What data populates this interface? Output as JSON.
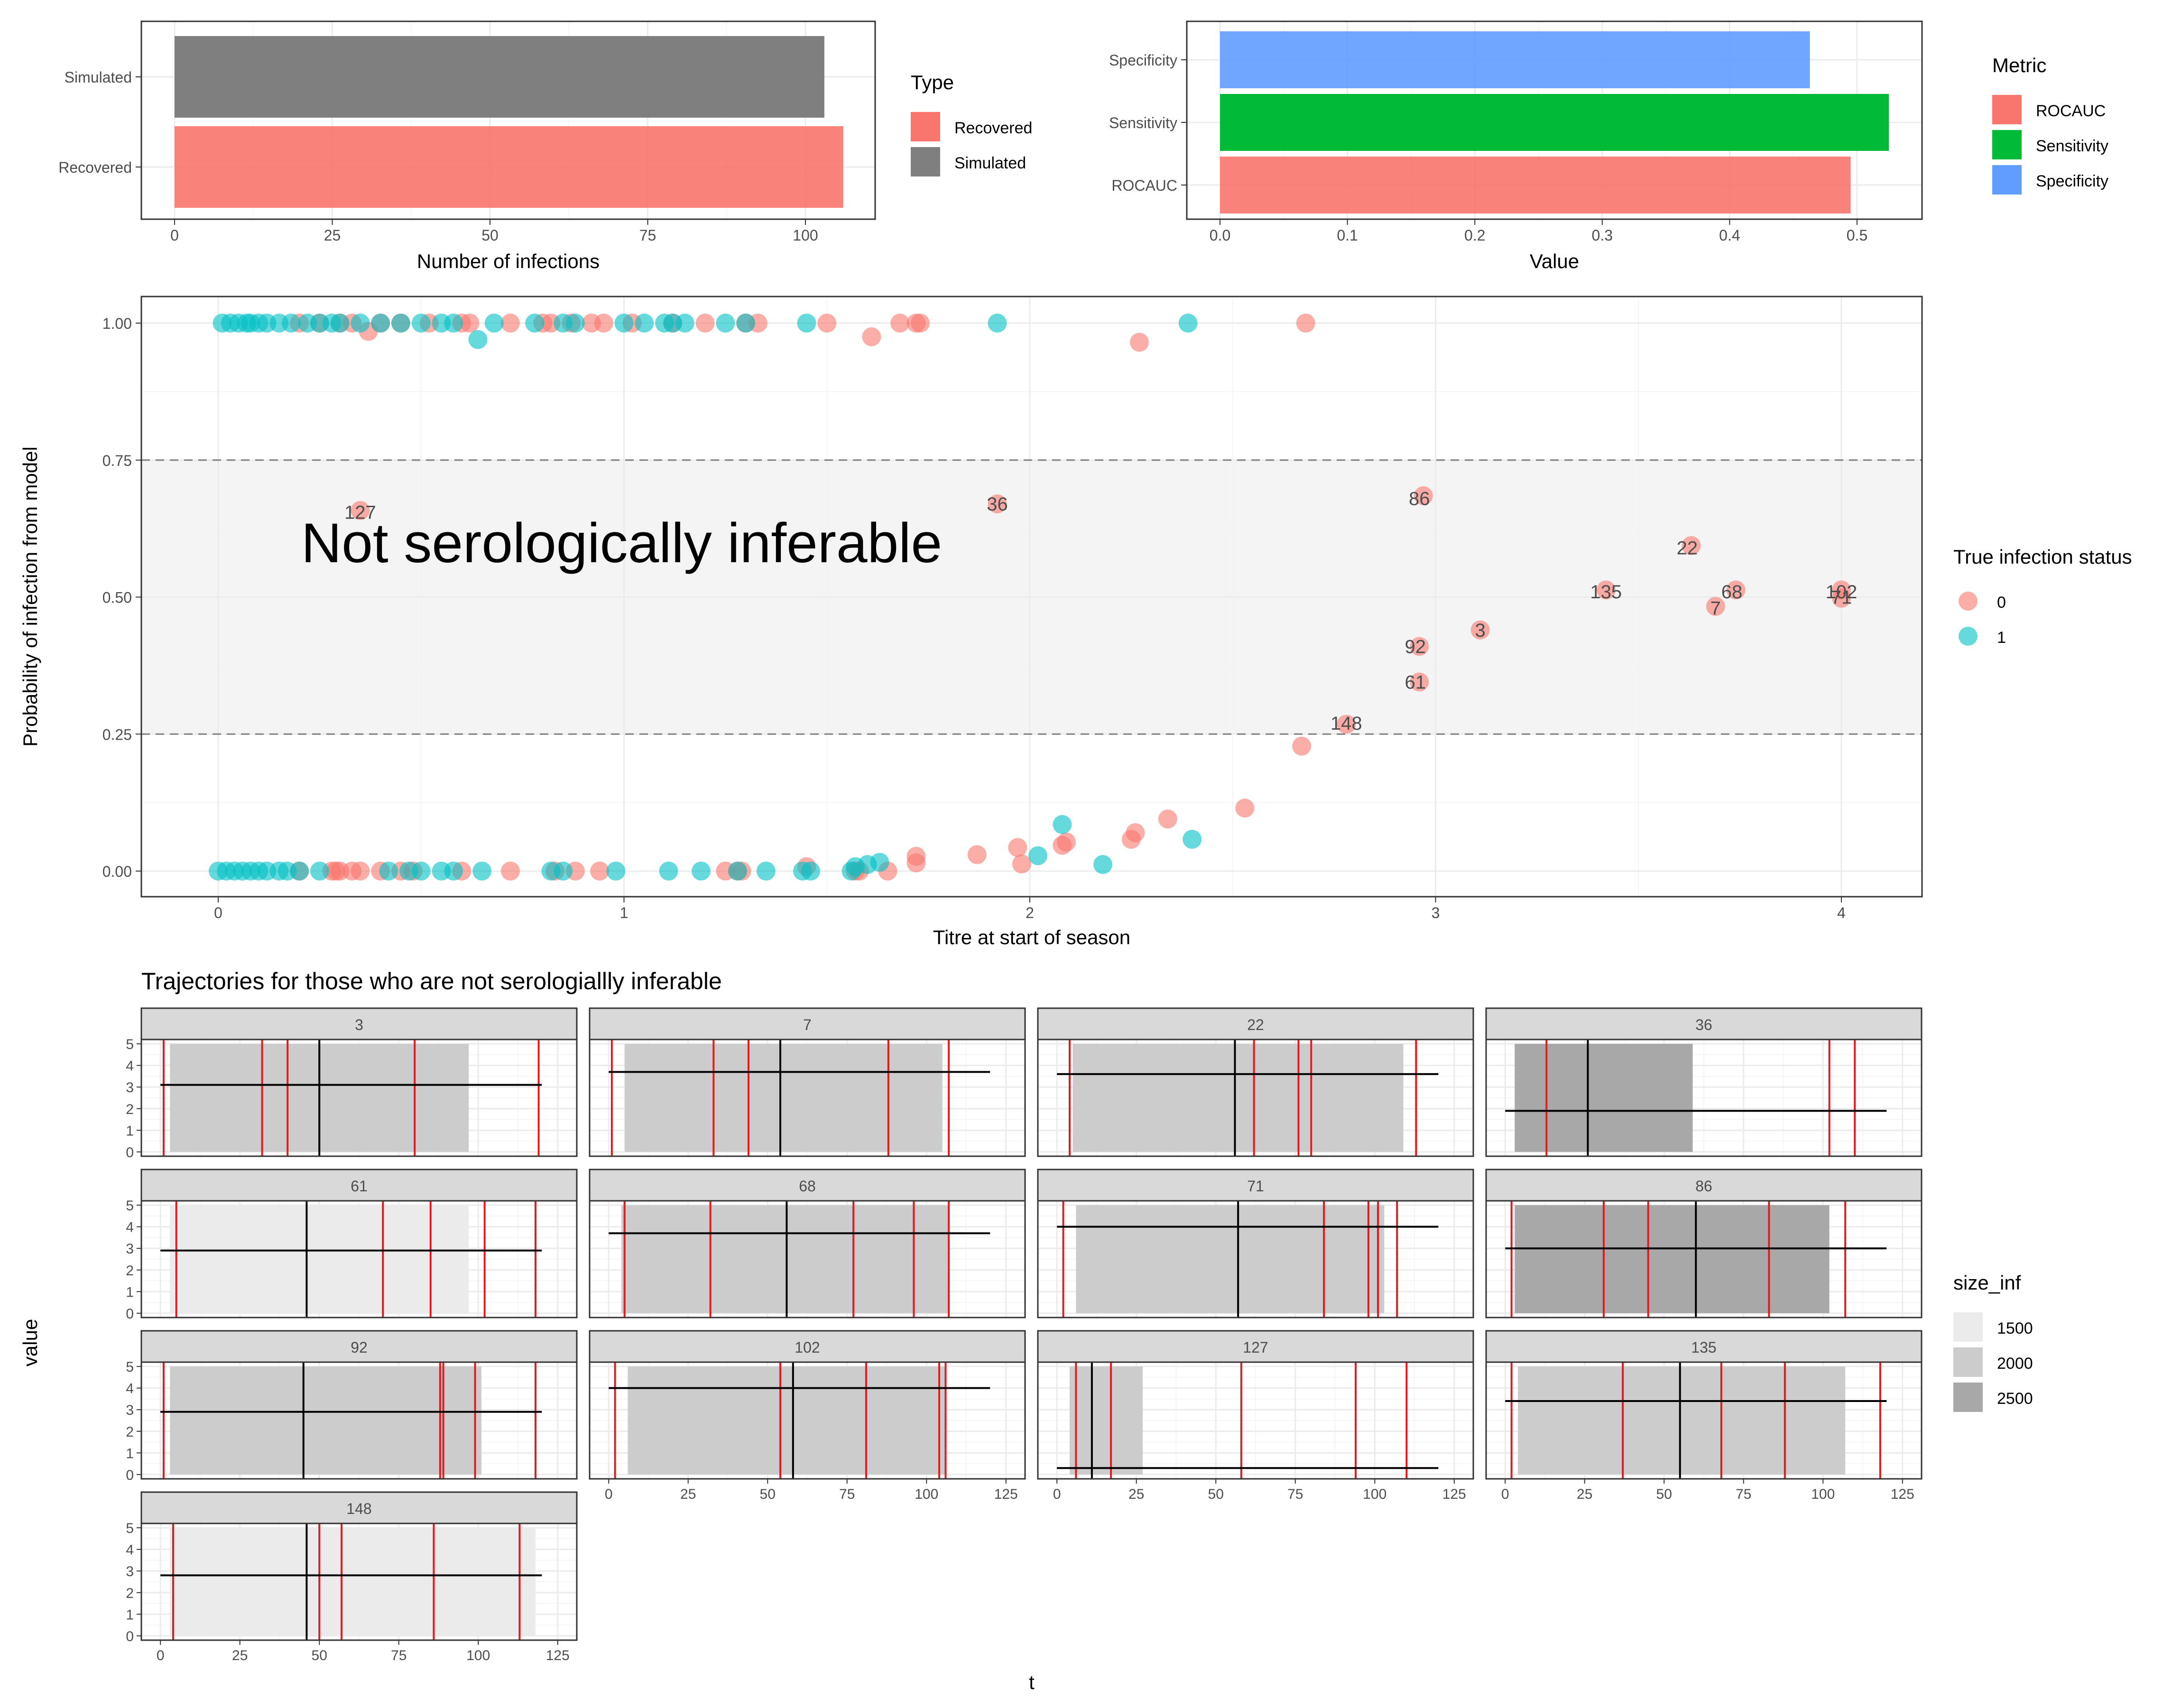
{
  "colors": {
    "recovered": "#F8766D",
    "simulated": "#7F7F7F",
    "rocauc": "#F8766D",
    "sensitivity": "#00BA38",
    "specificity": "#619CFF",
    "status0": "#F8766D",
    "status1": "#00BFC4",
    "vline": "#E41A1C",
    "size1500": "#EBEBEB",
    "size2000": "#CCCCCC",
    "size2500": "#A8A8A8"
  },
  "chart_data": [
    {
      "type": "bar",
      "orientation": "horizontal",
      "categories": [
        "Recovered",
        "Simulated"
      ],
      "values": [
        106,
        103
      ],
      "xlabel": "Number of infections",
      "ylabel": "",
      "xlim": [
        0,
        110
      ],
      "xticks": [
        "0",
        "25",
        "50",
        "75",
        "100"
      ],
      "legend": {
        "title": "Type",
        "entries": [
          "Recovered",
          "Simulated"
        ],
        "placement": "right"
      }
    },
    {
      "type": "bar",
      "orientation": "horizontal",
      "categories": [
        "ROCAUC",
        "Sensitivity",
        "Specificity"
      ],
      "values": [
        0.495,
        0.525,
        0.463
      ],
      "xlabel": "Value",
      "ylabel": "",
      "xlim": [
        0,
        0.55
      ],
      "xticks": [
        "0.0",
        "0.1",
        "0.2",
        "0.3",
        "0.4",
        "0.5"
      ],
      "legend": {
        "title": "Metric",
        "entries": [
          "ROCAUC",
          "Sensitivity",
          "Specificity"
        ],
        "placement": "right"
      }
    },
    {
      "type": "scatter",
      "xlabel": "Titre at start of season",
      "ylabel": "Probability of infection from model",
      "xlim": [
        -0.19,
        4.2
      ],
      "ylim": [
        -0.05,
        1.05
      ],
      "xticks": [
        "0",
        "1",
        "2",
        "3",
        "4"
      ],
      "yticks": [
        "0.00",
        "0.25",
        "0.50",
        "0.75",
        "1.00"
      ],
      "band": [
        0.25,
        0.75
      ],
      "annotation": "Not serologically inferable",
      "legend": {
        "title": "True infection status",
        "entries": [
          "0",
          "1"
        ],
        "placement": "right"
      },
      "labels": [
        {
          "text": "127",
          "x": 0.35,
          "y": 0.655
        },
        {
          "text": "36",
          "x": 1.92,
          "y": 0.67
        },
        {
          "text": "86",
          "x": 2.96,
          "y": 0.68
        },
        {
          "text": "22",
          "x": 3.62,
          "y": 0.59
        },
        {
          "text": "135",
          "x": 3.42,
          "y": 0.51
        },
        {
          "text": "68",
          "x": 3.73,
          "y": 0.51
        },
        {
          "text": "7",
          "x": 3.69,
          "y": 0.48
        },
        {
          "text": "102",
          "x": 4.0,
          "y": 0.51
        },
        {
          "text": "71",
          "x": 4.0,
          "y": 0.5
        },
        {
          "text": "3",
          "x": 3.11,
          "y": 0.44
        },
        {
          "text": "92",
          "x": 2.95,
          "y": 0.41
        },
        {
          "text": "61",
          "x": 2.95,
          "y": 0.345
        },
        {
          "text": "148",
          "x": 2.78,
          "y": 0.27
        }
      ],
      "series": [
        {
          "name": "0",
          "points": [
            [
              0.2,
              1.0
            ],
            [
              0.25,
              1.0
            ],
            [
              0.3,
              1.0
            ],
            [
              0.33,
              1.0
            ],
            [
              0.37,
              0.985
            ],
            [
              0.4,
              1.0
            ],
            [
              0.45,
              1.0
            ],
            [
              0.52,
              1.0
            ],
            [
              0.6,
              1.0
            ],
            [
              0.62,
              1.0
            ],
            [
              0.72,
              1.0
            ],
            [
              0.8,
              1.0
            ],
            [
              0.82,
              1.0
            ],
            [
              0.87,
              1.0
            ],
            [
              0.92,
              1.0
            ],
            [
              0.95,
              1.0
            ],
            [
              1.02,
              1.0
            ],
            [
              1.12,
              1.0
            ],
            [
              1.2,
              1.0
            ],
            [
              1.3,
              1.0
            ],
            [
              1.33,
              1.0
            ],
            [
              1.5,
              1.0
            ],
            [
              1.61,
              0.975
            ],
            [
              1.68,
              1.0
            ],
            [
              1.72,
              1.0
            ],
            [
              1.73,
              1.0
            ],
            [
              2.27,
              0.965
            ],
            [
              2.68,
              1.0
            ],
            [
              0.35,
              0.658
            ],
            [
              1.92,
              0.67
            ],
            [
              2.97,
              0.685
            ],
            [
              3.63,
              0.594
            ],
            [
              3.42,
              0.513
            ],
            [
              3.74,
              0.513
            ],
            [
              3.69,
              0.483
            ],
            [
              4.0,
              0.513
            ],
            [
              4.0,
              0.498
            ],
            [
              3.11,
              0.44
            ],
            [
              2.96,
              0.41
            ],
            [
              2.96,
              0.345
            ],
            [
              2.78,
              0.268
            ],
            [
              2.67,
              0.228
            ],
            [
              2.53,
              0.115
            ],
            [
              2.34,
              0.095
            ],
            [
              2.26,
              0.07
            ],
            [
              2.25,
              0.058
            ],
            [
              2.09,
              0.053
            ],
            [
              2.08,
              0.047
            ],
            [
              1.97,
              0.043
            ],
            [
              1.87,
              0.03
            ],
            [
              1.72,
              0.027
            ],
            [
              1.72,
              0.015
            ],
            [
              1.98,
              0.013
            ],
            [
              1.45,
              0.008
            ],
            [
              1.65,
              0.0
            ],
            [
              1.57,
              0.0
            ],
            [
              1.58,
              0.0
            ],
            [
              1.25,
              0.0
            ],
            [
              1.28,
              0.0
            ],
            [
              1.29,
              0.0
            ],
            [
              0.94,
              0.0
            ],
            [
              0.88,
              0.0
            ],
            [
              0.83,
              0.0
            ],
            [
              0.72,
              0.0
            ],
            [
              0.6,
              0.0
            ],
            [
              0.48,
              0.0
            ],
            [
              0.45,
              0.0
            ],
            [
              0.4,
              0.0
            ],
            [
              0.35,
              0.0
            ],
            [
              0.33,
              0.0
            ],
            [
              0.3,
              0.0
            ],
            [
              0.29,
              0.0
            ],
            [
              0.28,
              0.0
            ],
            [
              0.2,
              0.0
            ]
          ]
        },
        {
          "name": "1",
          "points": [
            [
              0.01,
              1.0
            ],
            [
              0.03,
              1.0
            ],
            [
              0.05,
              1.0
            ],
            [
              0.07,
              1.0
            ],
            [
              0.08,
              1.0
            ],
            [
              0.1,
              1.0
            ],
            [
              0.12,
              1.0
            ],
            [
              0.15,
              1.0
            ],
            [
              0.18,
              1.0
            ],
            [
              0.22,
              1.0
            ],
            [
              0.25,
              1.0
            ],
            [
              0.28,
              1.0
            ],
            [
              0.3,
              1.0
            ],
            [
              0.35,
              1.0
            ],
            [
              0.4,
              1.0
            ],
            [
              0.45,
              1.0
            ],
            [
              0.5,
              1.0
            ],
            [
              0.55,
              1.0
            ],
            [
              0.58,
              1.0
            ],
            [
              0.64,
              0.97
            ],
            [
              0.68,
              1.0
            ],
            [
              0.78,
              1.0
            ],
            [
              0.85,
              1.0
            ],
            [
              0.88,
              1.0
            ],
            [
              1.0,
              1.0
            ],
            [
              1.05,
              1.0
            ],
            [
              1.1,
              1.0
            ],
            [
              1.12,
              1.0
            ],
            [
              1.15,
              1.0
            ],
            [
              1.25,
              1.0
            ],
            [
              1.3,
              1.0
            ],
            [
              1.45,
              1.0
            ],
            [
              1.92,
              1.0
            ],
            [
              2.39,
              1.0
            ],
            [
              2.08,
              0.085
            ],
            [
              2.4,
              0.058
            ],
            [
              2.02,
              0.028
            ],
            [
              2.18,
              0.012
            ],
            [
              1.63,
              0.016
            ],
            [
              1.6,
              0.012
            ],
            [
              1.57,
              0.008
            ],
            [
              1.56,
              0.0
            ],
            [
              1.46,
              0.0
            ],
            [
              1.44,
              0.0
            ],
            [
              1.35,
              0.0
            ],
            [
              1.28,
              0.0
            ],
            [
              1.19,
              0.0
            ],
            [
              1.11,
              0.0
            ],
            [
              0.98,
              0.0
            ],
            [
              0.85,
              0.0
            ],
            [
              0.82,
              0.0
            ],
            [
              0.65,
              0.0
            ],
            [
              0.58,
              0.0
            ],
            [
              0.55,
              0.0
            ],
            [
              0.5,
              0.0
            ],
            [
              0.47,
              0.0
            ],
            [
              0.42,
              0.0
            ],
            [
              0.25,
              0.0
            ],
            [
              0.2,
              0.0
            ],
            [
              0.17,
              0.0
            ],
            [
              0.15,
              0.0
            ],
            [
              0.12,
              0.0
            ],
            [
              0.1,
              0.0
            ],
            [
              0.08,
              0.0
            ],
            [
              0.06,
              0.0
            ],
            [
              0.04,
              0.0
            ],
            [
              0.02,
              0.0
            ],
            [
              0.0,
              0.0
            ]
          ]
        }
      ]
    },
    {
      "type": "line",
      "subtype": "facet_wrap",
      "title": "Trajectories for those who are not serologiallly inferable",
      "xlabel": "t",
      "ylabel": "value",
      "xlim": [
        -6,
        131
      ],
      "ylim": [
        -0.2,
        5.2
      ],
      "xticks": [
        "0",
        "25",
        "50",
        "75",
        "100",
        "125"
      ],
      "yticks": [
        "0",
        "1",
        "2",
        "3",
        "4",
        "5"
      ],
      "legend": {
        "title": "size_inf",
        "entries": [
          "1500",
          "2000",
          "2500"
        ],
        "placement": "right"
      },
      "panels": [
        {
          "id": "3",
          "size_inf": 2000,
          "rect": [
            3,
            97
          ],
          "hline": 3.1,
          "black_vline": 50,
          "red_vlines": [
            1,
            32,
            40,
            80,
            119
          ]
        },
        {
          "id": "7",
          "size_inf": 2000,
          "rect": [
            5,
            105
          ],
          "hline": 3.7,
          "black_vline": 54,
          "red_vlines": [
            1,
            33,
            44,
            88,
            107
          ]
        },
        {
          "id": "22",
          "size_inf": 2000,
          "rect": [
            5,
            109
          ],
          "hline": 3.6,
          "black_vline": 56,
          "red_vlines": [
            4,
            62,
            76,
            80,
            113
          ]
        },
        {
          "id": "36",
          "size_inf": 2500,
          "rect": [
            3,
            59
          ],
          "hline": 1.9,
          "black_vline": 26,
          "red_vlines": [
            13,
            102,
            110
          ]
        },
        {
          "id": "61",
          "size_inf": 1500,
          "rect": [
            3,
            97
          ],
          "hline": 2.9,
          "black_vline": 46,
          "red_vlines": [
            5,
            70,
            85,
            102,
            118
          ]
        },
        {
          "id": "68",
          "size_inf": 2000,
          "rect": [
            4,
            107
          ],
          "hline": 3.7,
          "black_vline": 56,
          "red_vlines": [
            5,
            32,
            77,
            96,
            107
          ]
        },
        {
          "id": "71",
          "size_inf": 2000,
          "rect": [
            6,
            103
          ],
          "hline": 4.0,
          "black_vline": 57,
          "red_vlines": [
            2,
            84,
            98,
            101,
            107
          ]
        },
        {
          "id": "86",
          "size_inf": 2500,
          "rect": [
            3,
            102
          ],
          "hline": 3.0,
          "black_vline": 60,
          "red_vlines": [
            2,
            31,
            45,
            83,
            107
          ]
        },
        {
          "id": "92",
          "size_inf": 2000,
          "rect": [
            3,
            101
          ],
          "hline": 2.9,
          "black_vline": 45,
          "red_vlines": [
            1,
            88,
            89,
            99,
            118
          ]
        },
        {
          "id": "102",
          "size_inf": 2000,
          "rect": [
            6,
            106
          ],
          "hline": 4.0,
          "black_vline": 58,
          "red_vlines": [
            2,
            54,
            81,
            104,
            106
          ]
        },
        {
          "id": "127",
          "size_inf": 2000,
          "rect": [
            4,
            27
          ],
          "hline": 0.3,
          "black_vline": 11,
          "red_vlines": [
            6,
            17,
            58,
            94,
            110
          ]
        },
        {
          "id": "135",
          "size_inf": 2000,
          "rect": [
            4,
            107
          ],
          "hline": 3.4,
          "black_vline": 55,
          "red_vlines": [
            2,
            37,
            68,
            88,
            118
          ]
        },
        {
          "id": "148",
          "size_inf": 1500,
          "rect": [
            3,
            118
          ],
          "hline": 2.8,
          "black_vline": 46,
          "red_vlines": [
            4,
            50,
            57,
            86,
            113
          ]
        }
      ]
    }
  ]
}
